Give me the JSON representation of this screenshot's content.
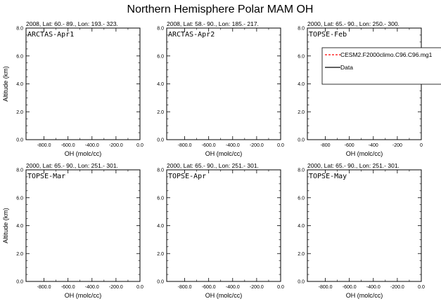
{
  "figure": {
    "title": "Northern Hemisphere Polar MAM OH"
  },
  "legend": {
    "placement": "top-right-of-panel-3",
    "entries": [
      {
        "label": "CESM2.F2000climo.C96.C96.mg1",
        "color": "#ff0000",
        "style": "dashed"
      },
      {
        "label": "Data",
        "color": "#000000",
        "style": "solid"
      }
    ]
  },
  "chart_data": [
    {
      "type": "line",
      "subtitle": "2008, Lat:  60.- 89., Lon: 193.- 323.",
      "label": "ARCTAS-Apr1",
      "xlabel": "OH (molc/cc)",
      "ylabel": "Altitude (km)",
      "xlim": [
        -950,
        0
      ],
      "ylim": [
        0,
        8
      ],
      "xticks": [
        -800,
        -600,
        -400,
        -200,
        0
      ],
      "xticklabels": [
        "-800.0",
        "-600.0",
        "-400.0",
        "-200.0",
        "0.0"
      ],
      "yticks": [
        0,
        2,
        4,
        6,
        8
      ],
      "yticklabels": [
        "0.0",
        "2.0",
        "4.0",
        "6.0",
        "8.0"
      ],
      "series": []
    },
    {
      "type": "line",
      "subtitle": "2008, Lat:  58.- 90., Lon: 185.- 217.",
      "label": "ARCTAS-Apr2",
      "xlabel": "OH (molc/cc)",
      "ylabel": "",
      "xlim": [
        -950,
        0
      ],
      "ylim": [
        0,
        8
      ],
      "xticks": [
        -800,
        -600,
        -400,
        -200,
        0
      ],
      "xticklabels": [
        "-800.0",
        "-600.0",
        "-400.0",
        "-200.0",
        "0.0"
      ],
      "yticks": [
        0,
        2,
        4,
        6,
        8
      ],
      "yticklabels": [
        "0.0",
        "2.0",
        "4.0",
        "6.0",
        "8.0"
      ],
      "series": []
    },
    {
      "type": "line",
      "subtitle": "2000, Lat:  65.- 90., Lon: 250.- 300.",
      "label": "TOPSE-Feb",
      "xlabel": "OH (molc/cc)",
      "ylabel": "",
      "xlim": [
        -950,
        0
      ],
      "ylim": [
        0,
        8
      ],
      "xticks": [
        -800,
        -600,
        -400,
        -200,
        0
      ],
      "xticklabels": [
        "-800",
        "-600",
        "-400",
        "-200",
        "0"
      ],
      "yticks": [
        0,
        2,
        4,
        6,
        8
      ],
      "yticklabels": [
        "0.0",
        "2.0",
        "4.0",
        "6.0",
        "8.0"
      ],
      "series": []
    },
    {
      "type": "line",
      "subtitle": "2000, Lat:  65.- 90., Lon: 251.- 301.",
      "label": "TOPSE-Mar",
      "xlabel": "OH (molc/cc)",
      "ylabel": "Altitude (km)",
      "xlim": [
        -950,
        0
      ],
      "ylim": [
        0,
        8
      ],
      "xticks": [
        -800,
        -600,
        -400,
        -200,
        0
      ],
      "xticklabels": [
        "-800.0",
        "-600.0",
        "-400.0",
        "-200.0",
        "0.0"
      ],
      "yticks": [
        0,
        2,
        4,
        6,
        8
      ],
      "yticklabels": [
        "0.0",
        "2.0",
        "4.0",
        "6.0",
        "8.0"
      ],
      "series": []
    },
    {
      "type": "line",
      "subtitle": "2000, Lat:  65.- 90., Lon: 251.- 301.",
      "label": "TOPSE-Apr",
      "xlabel": "OH (molc/cc)",
      "ylabel": "",
      "xlim": [
        -950,
        0
      ],
      "ylim": [
        0,
        8
      ],
      "xticks": [
        -800,
        -600,
        -400,
        -200,
        0
      ],
      "xticklabels": [
        "-800.0",
        "-600.0",
        "-400.0",
        "-200.0",
        "0.0"
      ],
      "yticks": [
        0,
        2,
        4,
        6,
        8
      ],
      "yticklabels": [
        "0.0",
        "2.0",
        "4.0",
        "6.0",
        "8.0"
      ],
      "series": []
    },
    {
      "type": "line",
      "subtitle": "2000, Lat:  65.- 90., Lon: 251.- 301.",
      "label": "TOPSE-May",
      "xlabel": "OH (molc/cc)",
      "ylabel": "",
      "xlim": [
        -950,
        0
      ],
      "ylim": [
        0,
        8
      ],
      "xticks": [
        -800,
        -600,
        -400,
        -200,
        0
      ],
      "xticklabels": [
        "-800.0",
        "-600.0",
        "-400.0",
        "-200.0",
        "0.0"
      ],
      "yticks": [
        0,
        2,
        4,
        6,
        8
      ],
      "yticklabels": [
        "0.0",
        "2.0",
        "4.0",
        "6.0",
        "8.0"
      ],
      "series": []
    }
  ]
}
